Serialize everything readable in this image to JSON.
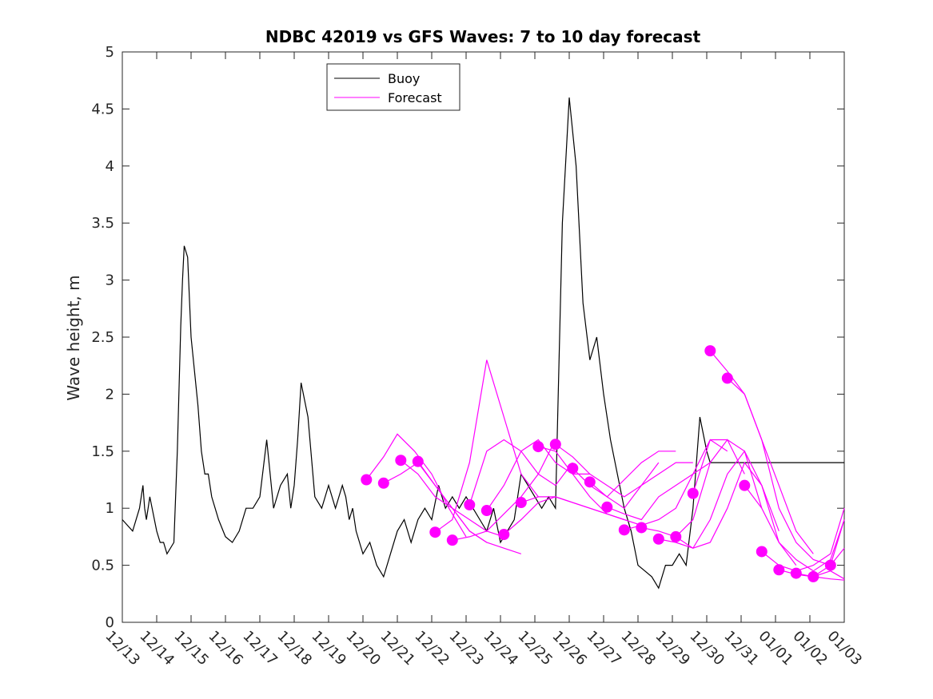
{
  "chart_data": {
    "type": "line",
    "title": "NDBC 42019 vs GFS Waves: 7 to 10 day forecast",
    "xlabel": "",
    "ylabel": "Wave height, m",
    "xlim": [
      0,
      21
    ],
    "ylim": [
      0,
      5
    ],
    "yticks": [
      0,
      0.5,
      1,
      1.5,
      2,
      2.5,
      3,
      3.5,
      4,
      4.5,
      5
    ],
    "ytick_labels": [
      "0",
      "0.5",
      "1",
      "1.5",
      "2",
      "2.5",
      "3",
      "3.5",
      "4",
      "4.5",
      "5"
    ],
    "xtick_labels": [
      "12/13",
      "12/14",
      "12/15",
      "12/16",
      "12/17",
      "12/18",
      "12/19",
      "12/20",
      "12/21",
      "12/22",
      "12/23",
      "12/24",
      "12/25",
      "12/26",
      "12/27",
      "12/28",
      "12/29",
      "12/30",
      "12/31",
      "01/01",
      "01/02",
      "01/03"
    ],
    "legend": {
      "position": "top-center",
      "entries": [
        {
          "label": "Buoy",
          "color": "#000000"
        },
        {
          "label": "Forecast",
          "color": "#ff00ff"
        }
      ]
    },
    "colors": {
      "buoy": "#000000",
      "forecast": "#ff00ff"
    },
    "series": [
      {
        "name": "Buoy",
        "x": [
          0,
          0.3,
          0.5,
          0.6,
          0.65,
          0.7,
          0.8,
          1.0,
          1.1,
          1.2,
          1.3,
          1.5,
          1.6,
          1.7,
          1.75,
          1.8,
          1.9,
          2.0,
          2.1,
          2.2,
          2.3,
          2.4,
          2.5,
          2.6,
          2.8,
          3.0,
          3.2,
          3.4,
          3.6,
          3.8,
          4.0,
          4.2,
          4.4,
          4.6,
          4.8,
          4.9,
          5.0,
          5.1,
          5.2,
          5.4,
          5.6,
          5.8,
          6.0,
          6.2,
          6.4,
          6.5,
          6.6,
          6.7,
          6.8,
          7.0,
          7.2,
          7.4,
          7.6,
          7.8,
          8.0,
          8.2,
          8.4,
          8.6,
          8.8,
          9.0,
          9.2,
          9.4,
          9.6,
          9.8,
          10.0,
          10.2,
          10.4,
          10.6,
          10.8,
          11.0,
          11.2,
          11.4,
          11.6,
          11.8,
          12.0,
          12.2,
          12.4,
          12.6,
          12.8,
          13.0,
          13.2,
          13.4,
          13.6,
          13.8,
          14.0,
          14.2,
          14.4,
          14.6,
          14.8,
          15.0,
          15.2,
          15.4,
          15.6,
          15.8,
          16.0,
          16.2,
          16.4,
          16.6,
          16.8,
          17.0,
          17.1,
          17.2,
          17.3,
          17.4,
          17.5,
          17.6,
          17.8,
          18.0,
          18.2,
          18.4,
          18.6,
          18.8,
          19.0,
          19.2,
          19.4,
          19.6,
          19.8,
          20.0,
          20.2,
          20.3,
          20.4,
          20.6,
          20.8,
          21.0
        ],
        "y": [
          0.9,
          0.8,
          1.0,
          1.2,
          1.0,
          0.9,
          1.1,
          0.8,
          0.7,
          0.7,
          0.6,
          0.7,
          1.5,
          2.6,
          3.0,
          3.3,
          3.2,
          2.5,
          2.2,
          1.9,
          1.5,
          1.3,
          1.3,
          1.1,
          0.9,
          0.75,
          0.7,
          0.8,
          1.0,
          1.0,
          1.1,
          1.6,
          1.0,
          1.2,
          1.3,
          1.0,
          1.2,
          1.6,
          2.1,
          1.8,
          1.1,
          1.0,
          1.2,
          1.0,
          1.2,
          1.1,
          0.9,
          1.0,
          0.8,
          0.6,
          0.7,
          0.5,
          0.4,
          0.6,
          0.8,
          0.9,
          0.7,
          0.9,
          1.0,
          0.9,
          1.2,
          1.0,
          1.1,
          1.0,
          1.1,
          1.0,
          0.9,
          0.8,
          1.0,
          0.7,
          0.8,
          0.9,
          1.3,
          1.2,
          1.1,
          1.0,
          1.1,
          1.0,
          3.5,
          4.6,
          4.0,
          2.8,
          2.3,
          2.5,
          2.0,
          1.6,
          1.3,
          1.0,
          0.8,
          0.5,
          0.45,
          0.4,
          0.3,
          0.5,
          0.5,
          0.6,
          0.5,
          1.0,
          1.8,
          1.5,
          1.4,
          1.4,
          1.4,
          1.4,
          1.4,
          1.4,
          1.4,
          1.4,
          1.4,
          1.4,
          1.4,
          1.4,
          1.4,
          1.4,
          1.4,
          1.4,
          1.4,
          1.4,
          1.4,
          1.4,
          1.4,
          1.4,
          1.4,
          1.4
        ]
      }
    ],
    "forecast_runs": [
      {
        "x": [
          7.1,
          7.6,
          8.0,
          8.5,
          9.0,
          9.5,
          10.0
        ],
        "y": [
          1.25,
          1.45,
          1.65,
          1.5,
          1.3,
          1.0,
          0.75
        ]
      },
      {
        "x": [
          7.6,
          8.1,
          8.6,
          9.1,
          9.6,
          10.1,
          10.6
        ],
        "y": [
          1.22,
          1.3,
          1.4,
          1.2,
          1.0,
          0.8,
          0.7
        ]
      },
      {
        "x": [
          8.1,
          8.6,
          9.1,
          9.6,
          10.1,
          10.6,
          11.1
        ],
        "y": [
          1.42,
          1.3,
          1.1,
          1.0,
          0.9,
          0.8,
          0.75
        ]
      },
      {
        "x": [
          8.6,
          9.1,
          9.6,
          10.1,
          10.6,
          11.1,
          11.6
        ],
        "y": [
          1.41,
          1.2,
          1.0,
          0.8,
          0.7,
          0.65,
          0.6
        ]
      },
      {
        "x": [
          9.1,
          9.6,
          10.1,
          10.6,
          11.1,
          11.6,
          12.1
        ],
        "y": [
          0.79,
          0.9,
          1.4,
          2.3,
          1.8,
          1.3,
          1.1
        ]
      },
      {
        "x": [
          9.6,
          10.1,
          10.6,
          11.1,
          11.6,
          12.1,
          12.6
        ],
        "y": [
          0.72,
          0.75,
          0.8,
          0.95,
          1.1,
          1.3,
          1.6
        ]
      },
      {
        "x": [
          10.1,
          10.6,
          11.1,
          11.6,
          12.1,
          12.6,
          13.1
        ],
        "y": [
          1.03,
          1.5,
          1.6,
          1.5,
          1.3,
          1.2,
          1.4
        ]
      },
      {
        "x": [
          10.6,
          11.1,
          11.6,
          12.1,
          12.6,
          13.1,
          13.6
        ],
        "y": [
          0.98,
          1.2,
          1.5,
          1.6,
          1.4,
          1.3,
          1.3
        ]
      },
      {
        "x": [
          11.1,
          11.6,
          12.1,
          12.6,
          13.1,
          13.6,
          14.1
        ],
        "y": [
          0.77,
          0.9,
          1.05,
          1.1,
          1.05,
          1.0,
          0.95
        ]
      },
      {
        "x": [
          11.6,
          12.1,
          12.6,
          13.1,
          13.6,
          14.1,
          14.6
        ],
        "y": [
          1.05,
          1.1,
          1.1,
          1.05,
          1.0,
          0.95,
          0.9
        ]
      },
      {
        "x": [
          12.1,
          12.6,
          13.1,
          13.6,
          14.1,
          14.6,
          15.1
        ],
        "y": [
          1.54,
          1.5,
          1.3,
          1.1,
          0.95,
          0.9,
          0.85
        ]
      },
      {
        "x": [
          12.6,
          13.1,
          13.6,
          14.1,
          14.6,
          15.1,
          15.6
        ],
        "y": [
          1.56,
          1.45,
          1.3,
          1.2,
          1.1,
          1.2,
          1.4
        ]
      },
      {
        "x": [
          13.1,
          13.6,
          14.1,
          14.6,
          15.1,
          15.6,
          16.1
        ],
        "y": [
          1.35,
          1.2,
          1.1,
          1.25,
          1.4,
          1.5,
          1.5
        ]
      },
      {
        "x": [
          13.6,
          14.1,
          14.6,
          15.1,
          15.6,
          16.1,
          16.6
        ],
        "y": [
          1.23,
          1.1,
          1.0,
          1.2,
          1.3,
          1.4,
          1.4
        ]
      },
      {
        "x": [
          14.1,
          14.6,
          15.1,
          15.6,
          16.1,
          16.6,
          17.1
        ],
        "y": [
          1.01,
          0.95,
          0.9,
          1.1,
          1.2,
          1.3,
          1.4
        ]
      },
      {
        "x": [
          14.6,
          15.1,
          15.6,
          16.1,
          16.6,
          17.1,
          17.6
        ],
        "y": [
          0.81,
          0.85,
          0.9,
          1.0,
          1.3,
          1.6,
          1.5
        ]
      },
      {
        "x": [
          15.1,
          15.6,
          16.1,
          16.6,
          17.1,
          17.6,
          18.1
        ],
        "y": [
          0.83,
          0.8,
          0.75,
          0.9,
          1.4,
          1.6,
          1.3
        ]
      },
      {
        "x": [
          15.6,
          16.1,
          16.6,
          17.1,
          17.6,
          18.1,
          18.6
        ],
        "y": [
          0.73,
          0.7,
          0.65,
          0.9,
          1.3,
          1.5,
          1.0
        ]
      },
      {
        "x": [
          16.1,
          16.6,
          17.1,
          17.6,
          18.1,
          18.6,
          19.1
        ],
        "y": [
          0.75,
          0.65,
          0.7,
          1.0,
          1.4,
          1.2,
          0.8
        ]
      },
      {
        "x": [
          16.6,
          17.1,
          17.6,
          18.1,
          18.6,
          19.1,
          19.6
        ],
        "y": [
          1.13,
          1.6,
          1.6,
          1.5,
          1.2,
          0.7,
          0.5
        ]
      },
      {
        "x": [
          17.1,
          17.6,
          18.1,
          18.6,
          19.1,
          19.6,
          20.1
        ],
        "y": [
          2.38,
          2.2,
          2.0,
          1.6,
          1.2,
          0.8,
          0.6
        ]
      },
      {
        "x": [
          17.6,
          18.1,
          18.6,
          19.1,
          19.6,
          20.1,
          20.6
        ],
        "y": [
          2.14,
          2.0,
          1.6,
          1.0,
          0.7,
          0.55,
          0.5
        ]
      },
      {
        "x": [
          18.1,
          18.6,
          19.1,
          19.6,
          20.1,
          20.6,
          21.0
        ],
        "y": [
          1.2,
          1.0,
          0.7,
          0.55,
          0.45,
          0.55,
          0.9
        ]
      },
      {
        "x": [
          18.6,
          19.1,
          19.6,
          20.1,
          20.6,
          21.0
        ],
        "y": [
          0.62,
          0.5,
          0.45,
          0.5,
          0.6,
          1.0
        ]
      },
      {
        "x": [
          19.1,
          19.6,
          20.1,
          20.6,
          21.0
        ],
        "y": [
          0.46,
          0.42,
          0.4,
          0.5,
          0.9
        ]
      },
      {
        "x": [
          19.6,
          20.1,
          20.6,
          21.0
        ],
        "y": [
          0.43,
          0.4,
          0.38,
          0.37
        ]
      },
      {
        "x": [
          20.1,
          20.6,
          21.0
        ],
        "y": [
          0.4,
          0.45,
          0.38
        ]
      },
      {
        "x": [
          20.6,
          21.0
        ],
        "y": [
          0.5,
          0.65
        ]
      }
    ]
  }
}
